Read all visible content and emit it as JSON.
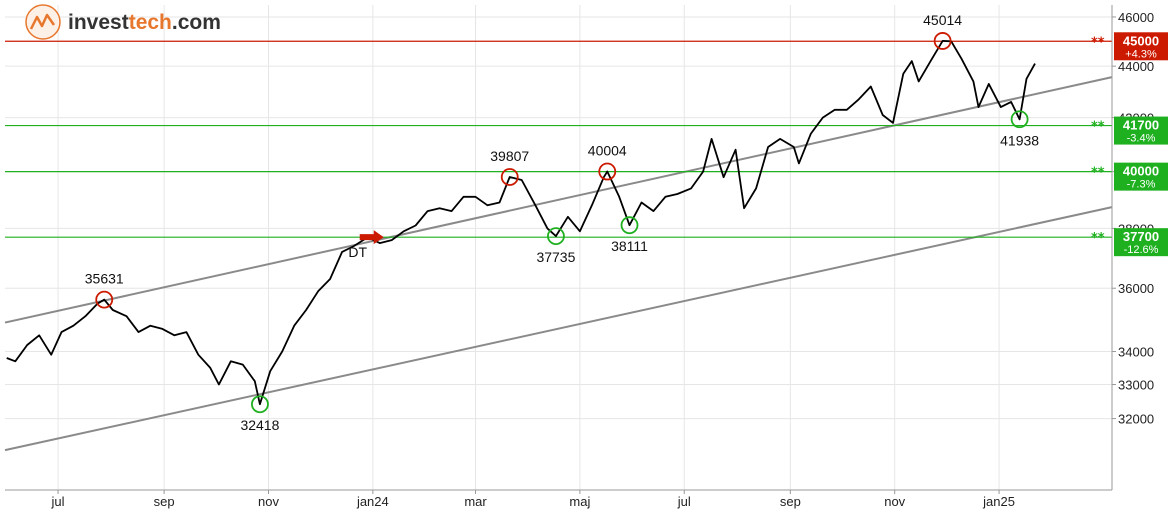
{
  "logo": {
    "brand_a": "invest",
    "brand_b": "tech",
    "domain": ".com"
  },
  "colors": {
    "price": "#000000",
    "up": "#1fb01f",
    "down": "#cc1a00",
    "channel": "#8a8a8a",
    "resistance": "#cc1a00",
    "support": "#1fb01f",
    "grid": "#e6e6e6",
    "axis": "#9a9a9a"
  },
  "chart_data": {
    "type": "line",
    "y_scale": "log",
    "ylim": [
      30000,
      46500
    ],
    "y_ticks": [
      32000,
      33000,
      34000,
      36000,
      38000,
      40000,
      42000,
      44000,
      46000
    ],
    "y_tick_labels": [
      "32000",
      "33000",
      "34000",
      "36000",
      "38000",
      "40000",
      "42000",
      "44000",
      "46000"
    ],
    "x_ticks": [
      "jul",
      "sep",
      "nov",
      "jan24",
      "mar",
      "maj",
      "jul",
      "sep",
      "nov",
      "jan25"
    ],
    "x_tick_dates": [
      "2023-07-01",
      "2023-09-01",
      "2023-11-01",
      "2024-01-01",
      "2024-03-01",
      "2024-05-01",
      "2024-07-01",
      "2024-09-01",
      "2024-11-01",
      "2025-01-01"
    ],
    "xlim": [
      "2023-05-31",
      "2025-03-08"
    ],
    "series": [
      {
        "values": [
          [
            "2023-06-01",
            33800
          ],
          [
            "2023-06-06",
            33700
          ],
          [
            "2023-06-13",
            34200
          ],
          [
            "2023-06-20",
            34500
          ],
          [
            "2023-06-27",
            33900
          ],
          [
            "2023-07-03",
            34600
          ],
          [
            "2023-07-10",
            34800
          ],
          [
            "2023-07-17",
            35100
          ],
          [
            "2023-07-24",
            35500
          ],
          [
            "2023-07-28",
            35631
          ],
          [
            "2023-08-02",
            35300
          ],
          [
            "2023-08-10",
            35100
          ],
          [
            "2023-08-17",
            34600
          ],
          [
            "2023-08-24",
            34800
          ],
          [
            "2023-08-31",
            34700
          ],
          [
            "2023-09-07",
            34500
          ],
          [
            "2023-09-14",
            34600
          ],
          [
            "2023-09-21",
            33900
          ],
          [
            "2023-09-28",
            33500
          ],
          [
            "2023-10-03",
            33000
          ],
          [
            "2023-10-10",
            33700
          ],
          [
            "2023-10-17",
            33600
          ],
          [
            "2023-10-24",
            33100
          ],
          [
            "2023-10-27",
            32418
          ],
          [
            "2023-11-02",
            33400
          ],
          [
            "2023-11-09",
            34000
          ],
          [
            "2023-11-16",
            34800
          ],
          [
            "2023-11-23",
            35300
          ],
          [
            "2023-11-30",
            35900
          ],
          [
            "2023-12-07",
            36300
          ],
          [
            "2023-12-14",
            37200
          ],
          [
            "2023-12-21",
            37400
          ],
          [
            "2023-12-29",
            37700
          ],
          [
            "2024-01-05",
            37500
          ],
          [
            "2024-01-12",
            37600
          ],
          [
            "2024-01-19",
            37900
          ],
          [
            "2024-01-26",
            38100
          ],
          [
            "2024-02-02",
            38600
          ],
          [
            "2024-02-09",
            38700
          ],
          [
            "2024-02-16",
            38600
          ],
          [
            "2024-02-23",
            39100
          ],
          [
            "2024-03-01",
            39100
          ],
          [
            "2024-03-08",
            38800
          ],
          [
            "2024-03-15",
            38900
          ],
          [
            "2024-03-21",
            39807
          ],
          [
            "2024-03-28",
            39700
          ],
          [
            "2024-04-05",
            38800
          ],
          [
            "2024-04-12",
            38000
          ],
          [
            "2024-04-17",
            37735
          ],
          [
            "2024-04-24",
            38400
          ],
          [
            "2024-05-01",
            37900
          ],
          [
            "2024-05-08",
            38800
          ],
          [
            "2024-05-15",
            39800
          ],
          [
            "2024-05-17",
            40004
          ],
          [
            "2024-05-24",
            39100
          ],
          [
            "2024-05-30",
            38111
          ],
          [
            "2024-06-06",
            38900
          ],
          [
            "2024-06-13",
            38600
          ],
          [
            "2024-06-20",
            39100
          ],
          [
            "2024-06-27",
            39200
          ],
          [
            "2024-07-05",
            39400
          ],
          [
            "2024-07-12",
            40000
          ],
          [
            "2024-07-17",
            41200
          ],
          [
            "2024-07-24",
            39800
          ],
          [
            "2024-07-31",
            40800
          ],
          [
            "2024-08-05",
            38700
          ],
          [
            "2024-08-12",
            39400
          ],
          [
            "2024-08-19",
            40900
          ],
          [
            "2024-08-26",
            41200
          ],
          [
            "2024-09-03",
            40900
          ],
          [
            "2024-09-06",
            40300
          ],
          [
            "2024-09-13",
            41400
          ],
          [
            "2024-09-20",
            42000
          ],
          [
            "2024-09-27",
            42300
          ],
          [
            "2024-10-04",
            42300
          ],
          [
            "2024-10-11",
            42700
          ],
          [
            "2024-10-18",
            43200
          ],
          [
            "2024-10-25",
            42100
          ],
          [
            "2024-10-31",
            41800
          ],
          [
            "2024-11-06",
            43700
          ],
          [
            "2024-11-11",
            44200
          ],
          [
            "2024-11-15",
            43400
          ],
          [
            "2024-11-22",
            44200
          ],
          [
            "2024-11-29",
            45014
          ],
          [
            "2024-12-04",
            45000
          ],
          [
            "2024-12-10",
            44300
          ],
          [
            "2024-12-17",
            43400
          ],
          [
            "2024-12-20",
            42400
          ],
          [
            "2024-12-26",
            43300
          ],
          [
            "2025-01-02",
            42400
          ],
          [
            "2025-01-08",
            42600
          ],
          [
            "2025-01-13",
            41938
          ],
          [
            "2025-01-17",
            43500
          ],
          [
            "2025-01-22",
            44100
          ]
        ]
      }
    ],
    "channels": [
      {
        "from": [
          "2023-05-31",
          34900
        ],
        "to": [
          "2025-01-22",
          42900
        ]
      },
      {
        "from": [
          "2023-05-31",
          31100
        ],
        "to": [
          "2025-01-22",
          38150
        ]
      }
    ],
    "horizontal_levels": [
      {
        "value": 45000,
        "label": "45000",
        "pct": "+4.3%",
        "kind": "resistance"
      },
      {
        "value": 41700,
        "label": "41700",
        "pct": "-3.4%",
        "kind": "support"
      },
      {
        "value": 40000,
        "label": "40000",
        "pct": "-7.3%",
        "kind": "support"
      },
      {
        "value": 37700,
        "label": "37700",
        "pct": "-12.6%",
        "kind": "support"
      }
    ],
    "annotations": [
      {
        "date": "2023-07-28",
        "value": 35631,
        "label": "35631",
        "kind": "top"
      },
      {
        "date": "2023-10-27",
        "value": 32418,
        "label": "32418",
        "kind": "bottom"
      },
      {
        "date": "2024-03-21",
        "value": 39807,
        "label": "39807",
        "kind": "top"
      },
      {
        "date": "2024-04-17",
        "value": 37735,
        "label": "37735",
        "kind": "bottom"
      },
      {
        "date": "2024-05-17",
        "value": 40004,
        "label": "40004",
        "kind": "top"
      },
      {
        "date": "2024-05-30",
        "value": 38111,
        "label": "38111",
        "kind": "bottom"
      },
      {
        "date": "2024-11-29",
        "value": 45014,
        "label": "45014",
        "kind": "top"
      },
      {
        "date": "2025-01-13",
        "value": 41938,
        "label": "41938",
        "kind": "bottom"
      }
    ],
    "signals": [
      {
        "date": "2023-12-29",
        "value": 37700,
        "label": "DT",
        "kind": "sell"
      }
    ],
    "grid": true
  }
}
